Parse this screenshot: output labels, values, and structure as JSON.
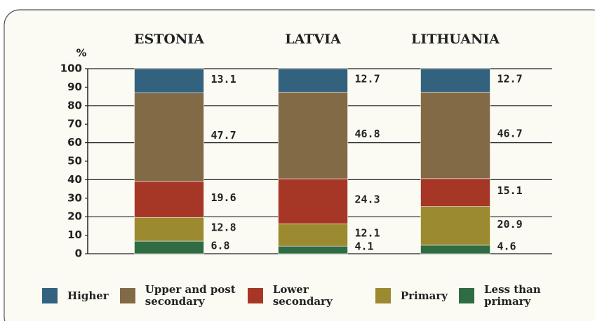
{
  "chart_data": {
    "type": "stacked_bar",
    "y_unit_label": "%",
    "categories": [
      "ESTONIA",
      "LATVIA",
      "LITHUANIA"
    ],
    "series": [
      {
        "name": "Higher",
        "color": "#33627f",
        "values": [
          13.1,
          12.7,
          12.7
        ]
      },
      {
        "name": "Upper and post secondary",
        "color": "#836a47",
        "values": [
          47.7,
          46.8,
          46.7
        ]
      },
      {
        "name": "Lower secondary",
        "color": "#a63726",
        "values": [
          19.6,
          24.3,
          15.1
        ]
      },
      {
        "name": "Primary",
        "color": "#9b8a30",
        "values": [
          12.8,
          12.1,
          20.9
        ]
      },
      {
        "name": "Less than primary",
        "color": "#2f6b43",
        "values": [
          6.8,
          4.1,
          4.6
        ]
      }
    ],
    "ylim": [
      0,
      100
    ],
    "yticks": [
      0,
      10,
      20,
      30,
      40,
      50,
      60,
      70,
      80,
      90,
      100
    ],
    "grid": true
  }
}
